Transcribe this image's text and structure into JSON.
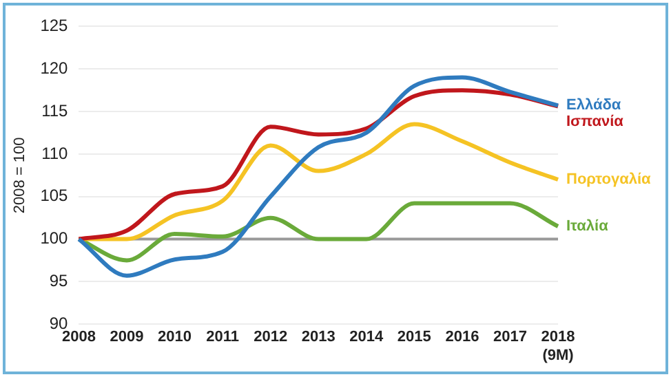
{
  "chart_data": {
    "type": "line",
    "ylabel": "2008 = 100",
    "categories": [
      "2008",
      "2009",
      "2010",
      "2011",
      "2012",
      "2013",
      "2014",
      "2015",
      "2016",
      "2017",
      "2018\n(9M)"
    ],
    "series": [
      {
        "name": "Ελλάδα",
        "color": "#2f7bbf",
        "values": [
          100,
          95.7,
          97.6,
          98.5,
          105,
          110.8,
          112.5,
          118,
          119,
          117.3,
          115.7
        ]
      },
      {
        "name": "Ισπανία",
        "color": "#c0171c",
        "values": [
          100,
          101,
          105.3,
          106.2,
          113.2,
          112.3,
          113,
          116.8,
          117.5,
          117,
          115.6
        ]
      },
      {
        "name": "Πορτογαλία",
        "color": "#f5c324",
        "values": [
          100,
          100,
          102.8,
          104.5,
          111,
          108,
          110,
          113.5,
          111.5,
          109,
          107
        ]
      },
      {
        "name": "Ιταλία",
        "color": "#6aaa3a",
        "values": [
          100,
          97.5,
          100.6,
          100.3,
          102.5,
          100,
          100,
          104.2,
          104.2,
          104.2,
          101.5
        ]
      }
    ],
    "ylim": [
      90,
      125
    ],
    "yticks": [
      90,
      95,
      100,
      105,
      110,
      115,
      120,
      125
    ],
    "grid": "y",
    "legend": false,
    "marker": "none",
    "line_style": "solid",
    "ref_lines": [
      {
        "axis": "y",
        "value": 100,
        "label": null,
        "color": "#999999"
      }
    ]
  }
}
